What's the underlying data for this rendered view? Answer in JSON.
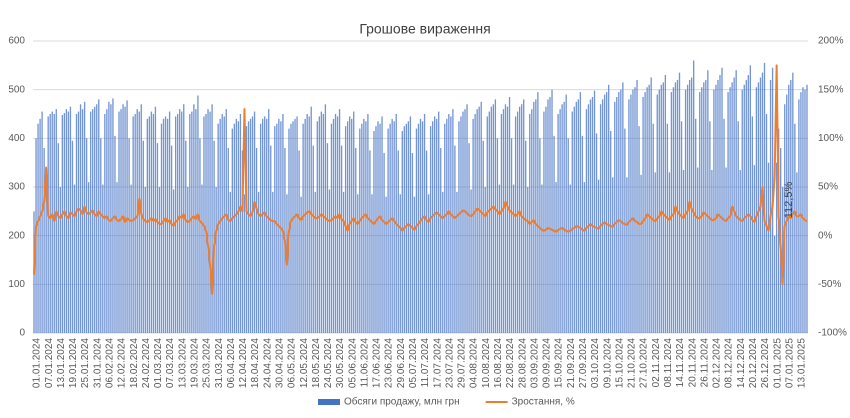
{
  "chart_data": {
    "type": "bar-line",
    "title": "Грошове вираження",
    "annotation": "112,5%",
    "categories": [
      "01.01.2024",
      null,
      null,
      null,
      null,
      null,
      "07.01.2024",
      null,
      null,
      null,
      null,
      null,
      "13.01.2024",
      null,
      null,
      null,
      null,
      null,
      "19.01.2024",
      null,
      null,
      null,
      null,
      null,
      "25.01.2024",
      null,
      null,
      null,
      null,
      null,
      "31.01.2024",
      null,
      null,
      null,
      null,
      null,
      "06.02.2024",
      null,
      null,
      null,
      null,
      null,
      "12.02.2024",
      null,
      null,
      null,
      null,
      null,
      "18.02.2024",
      null,
      null,
      null,
      null,
      null,
      "24.02.2024",
      null,
      null,
      null,
      null,
      null,
      "01.03.2024",
      null,
      null,
      null,
      null,
      null,
      "07.03.2024",
      null,
      null,
      null,
      null,
      null,
      "13.03.2024",
      null,
      null,
      null,
      null,
      null,
      "19.03.2024",
      null,
      null,
      null,
      null,
      null,
      "25.03.2024",
      null,
      null,
      null,
      null,
      null,
      "31.03.2024",
      null,
      null,
      null,
      null,
      null,
      "06.04.2024",
      null,
      null,
      null,
      null,
      null,
      "12.04.2024",
      null,
      null,
      null,
      null,
      null,
      "18.04.2024",
      null,
      null,
      null,
      null,
      null,
      "24.04.2024",
      null,
      null,
      null,
      null,
      null,
      "30.04.2024",
      null,
      null,
      null,
      null,
      null,
      "06.05.2024",
      null,
      null,
      null,
      null,
      null,
      "12.05.2024",
      null,
      null,
      null,
      null,
      null,
      "18.05.2024",
      null,
      null,
      null,
      null,
      null,
      "24.05.2024",
      null,
      null,
      null,
      null,
      null,
      "30.05.2024",
      null,
      null,
      null,
      null,
      null,
      "05.06.2024",
      null,
      null,
      null,
      null,
      null,
      "11.06.2024",
      null,
      null,
      null,
      null,
      null,
      "17.06.2024",
      null,
      null,
      null,
      null,
      null,
      "23.06.2024",
      null,
      null,
      null,
      null,
      null,
      "29.06.2024",
      null,
      null,
      null,
      null,
      null,
      "05.07.2024",
      null,
      null,
      null,
      null,
      null,
      "11.07.2024",
      null,
      null,
      null,
      null,
      null,
      "17.07.2024",
      null,
      null,
      null,
      null,
      null,
      "23.07.2024",
      null,
      null,
      null,
      null,
      null,
      "29.07.2024",
      null,
      null,
      null,
      null,
      null,
      "04.08.2024",
      null,
      null,
      null,
      null,
      null,
      "10.08.2024",
      null,
      null,
      null,
      null,
      null,
      "16.08.2024",
      null,
      null,
      null,
      null,
      null,
      "22.08.2024",
      null,
      null,
      null,
      null,
      null,
      "28.08.2024",
      null,
      null,
      null,
      null,
      null,
      "03.09.2024",
      null,
      null,
      null,
      null,
      null,
      "09.09.2024",
      null,
      null,
      null,
      null,
      null,
      "15.09.2024",
      null,
      null,
      null,
      null,
      null,
      "21.09.2024",
      null,
      null,
      null,
      null,
      null,
      "27.09.2024",
      null,
      null,
      null,
      null,
      null,
      "03.10.2024",
      null,
      null,
      null,
      null,
      null,
      "09.10.2024",
      null,
      null,
      null,
      null,
      null,
      "15.10.2024",
      null,
      null,
      null,
      null,
      null,
      "21.10.2024",
      null,
      null,
      null,
      null,
      null,
      "27.10.2024",
      null,
      null,
      null,
      null,
      null,
      "02.11.2024",
      null,
      null,
      null,
      null,
      null,
      "08.11.2024",
      null,
      null,
      null,
      null,
      null,
      "14.11.2024",
      null,
      null,
      null,
      null,
      null,
      "20.11.2024",
      null,
      null,
      null,
      null,
      null,
      "26.11.2024",
      null,
      null,
      null,
      null,
      null,
      "02.12.2024",
      null,
      null,
      null,
      null,
      null,
      "08.12.2024",
      null,
      null,
      null,
      null,
      null,
      "14.12.2024",
      null,
      null,
      null,
      null,
      null,
      "20.12.2024",
      null,
      null,
      null,
      null,
      null,
      "26.12.2024",
      null,
      null,
      null,
      null,
      null,
      "01.01.2025",
      null,
      null,
      null,
      null,
      null,
      "07.01.2025",
      null,
      null,
      null,
      null,
      null,
      "13.01.2025",
      null,
      null,
      null,
      null
    ],
    "series": [
      {
        "name": "Обсяги продажу, млн грн",
        "type": "bar",
        "color": "#4472c4",
        "values": [
          250,
          400,
          430,
          440,
          455,
          380,
          300,
          445,
          450,
          455,
          450,
          460,
          390,
          300,
          448,
          452,
          460,
          455,
          465,
          395,
          305,
          450,
          455,
          470,
          460,
          475,
          400,
          310,
          455,
          460,
          465,
          470,
          480,
          400,
          305,
          450,
          460,
          475,
          470,
          482,
          405,
          310,
          455,
          460,
          470,
          465,
          478,
          400,
          305,
          445,
          450,
          460,
          455,
          470,
          395,
          300,
          440,
          445,
          455,
          450,
          465,
          390,
          300,
          430,
          440,
          445,
          440,
          455,
          385,
          295,
          445,
          450,
          460,
          455,
          470,
          395,
          300,
          450,
          455,
          470,
          460,
          488,
          400,
          305,
          445,
          450,
          460,
          455,
          470,
          395,
          300,
          430,
          440,
          450,
          445,
          460,
          380,
          290,
          420,
          430,
          440,
          435,
          450,
          375,
          285,
          425,
          435,
          440,
          445,
          455,
          380,
          290,
          430,
          440,
          445,
          440,
          460,
          385,
          290,
          425,
          430,
          440,
          435,
          450,
          380,
          285,
          420,
          430,
          435,
          440,
          445,
          375,
          280,
          430,
          440,
          450,
          445,
          465,
          385,
          290,
          435,
          445,
          455,
          450,
          470,
          390,
          295,
          430,
          440,
          450,
          445,
          460,
          385,
          290,
          425,
          435,
          445,
          440,
          455,
          380,
          285,
          420,
          430,
          440,
          435,
          450,
          375,
          285,
          415,
          425,
          435,
          430,
          445,
          370,
          280,
          420,
          430,
          440,
          435,
          450,
          375,
          285,
          415,
          425,
          430,
          435,
          445,
          370,
          280,
          420,
          430,
          440,
          435,
          450,
          375,
          285,
          425,
          435,
          445,
          440,
          455,
          380,
          290,
          430,
          440,
          450,
          445,
          460,
          385,
          290,
          435,
          445,
          455,
          460,
          470,
          390,
          295,
          440,
          450,
          460,
          465,
          475,
          395,
          300,
          445,
          455,
          465,
          470,
          480,
          400,
          305,
          450,
          460,
          470,
          465,
          485,
          400,
          305,
          445,
          455,
          465,
          470,
          480,
          395,
          300,
          450,
          460,
          475,
          480,
          495,
          400,
          305,
          455,
          465,
          480,
          485,
          500,
          405,
          310,
          450,
          460,
          470,
          475,
          490,
          400,
          305,
          455,
          465,
          475,
          480,
          495,
          405,
          310,
          460,
          470,
          480,
          485,
          498,
          410,
          315,
          470,
          480,
          490,
          495,
          510,
          415,
          320,
          475,
          485,
          495,
          500,
          515,
          420,
          320,
          480,
          490,
          500,
          505,
          520,
          425,
          325,
          485,
          495,
          505,
          510,
          525,
          430,
          330,
          490,
          500,
          510,
          515,
          530,
          430,
          330,
          495,
          505,
          515,
          520,
          535,
          435,
          335,
          500,
          510,
          520,
          525,
          560,
          440,
          340,
          495,
          505,
          515,
          520,
          540,
          435,
          335,
          500,
          510,
          520,
          530,
          545,
          440,
          340,
          495,
          505,
          515,
          525,
          540,
          435,
          335,
          500,
          510,
          520,
          530,
          550,
          445,
          345,
          505,
          515,
          525,
          535,
          555,
          450,
          350,
          520,
          545,
          200,
          350,
          420,
          380,
          300,
          470,
          490,
          510,
          520,
          535,
          430,
          330,
          480,
          495,
          505,
          500,
          510
        ]
      },
      {
        "name": "Зростання, %",
        "type": "line",
        "axis": "y2",
        "color": "#ed7d31",
        "values": [
          -40,
          10,
          15,
          20,
          25,
          35,
          70,
          20,
          18,
          22,
          15,
          25,
          20,
          18,
          22,
          25,
          20,
          18,
          24,
          22,
          20,
          25,
          28,
          26,
          22,
          30,
          24,
          22,
          24,
          26,
          22,
          20,
          25,
          22,
          20,
          18,
          20,
          16,
          15,
          18,
          20,
          16,
          15,
          17,
          20,
          14,
          18,
          16,
          15,
          16,
          18,
          20,
          38,
          22,
          17,
          15,
          14,
          16,
          18,
          15,
          17,
          14,
          12,
          12,
          15,
          18,
          14,
          16,
          12,
          10,
          14,
          16,
          20,
          18,
          22,
          16,
          14,
          15,
          18,
          20,
          17,
          22,
          15,
          13,
          10,
          5,
          -10,
          -30,
          -60,
          -10,
          5,
          12,
          15,
          18,
          20,
          22,
          16,
          15,
          18,
          20,
          22,
          25,
          30,
          25,
          130,
          25,
          22,
          20,
          24,
          35,
          28,
          22,
          20,
          22,
          24,
          20,
          18,
          16,
          15,
          15,
          12,
          10,
          8,
          5,
          -5,
          -30,
          5,
          15,
          18,
          20,
          22,
          18,
          16,
          20,
          22,
          24,
          25,
          22,
          20,
          18,
          18,
          20,
          22,
          20,
          18,
          16,
          15,
          16,
          18,
          20,
          18,
          22,
          17,
          15,
          10,
          5,
          12,
          15,
          18,
          14,
          12,
          15,
          18,
          20,
          22,
          18,
          16,
          14,
          12,
          15,
          18,
          20,
          16,
          14,
          12,
          14,
          16,
          18,
          15,
          12,
          10,
          8,
          5,
          8,
          10,
          12,
          10,
          8,
          6,
          10,
          12,
          15,
          18,
          20,
          16,
          14,
          18,
          20,
          22,
          24,
          22,
          20,
          18,
          20,
          22,
          25,
          22,
          20,
          18,
          20,
          22,
          24,
          26,
          25,
          23,
          21,
          20,
          22,
          25,
          28,
          26,
          24,
          22,
          20,
          24,
          26,
          28,
          30,
          27,
          25,
          22,
          25,
          28,
          35,
          30,
          26,
          24,
          22,
          20,
          22,
          25,
          20,
          18,
          16,
          15,
          12,
          14,
          16,
          12,
          10,
          8,
          6,
          5,
          6,
          8,
          7,
          6,
          5,
          4,
          6,
          7,
          8,
          6,
          5,
          4,
          5,
          7,
          8,
          10,
          9,
          8,
          6,
          5,
          8,
          10,
          12,
          10,
          9,
          8,
          7,
          10,
          12,
          14,
          12,
          11,
          10,
          9,
          12,
          14,
          16,
          15,
          13,
          12,
          11,
          14,
          16,
          18,
          15,
          14,
          12,
          12,
          15,
          18,
          22,
          20,
          18,
          16,
          15,
          18,
          20,
          25,
          22,
          20,
          18,
          16,
          20,
          22,
          30,
          25,
          22,
          20,
          18,
          22,
          25,
          35,
          28,
          24,
          20,
          18,
          18,
          20,
          24,
          22,
          20,
          18,
          16,
          16,
          18,
          22,
          20,
          18,
          16,
          15,
          18,
          20,
          30,
          25,
          20,
          18,
          16,
          15,
          18,
          20,
          22,
          20,
          16,
          14,
          20,
          25,
          30,
          50,
          15,
          10,
          5,
          20,
          30,
          60,
          175,
          20,
          -10,
          -50,
          10,
          15,
          20,
          18,
          22,
          25,
          20,
          20,
          22,
          18,
          16,
          15
        ]
      }
    ],
    "ylim": [
      0,
      600
    ],
    "yticks": [
      0,
      100,
      200,
      300,
      400,
      500,
      600
    ],
    "y2lim": [
      -100,
      200
    ],
    "y2ticks": [
      {
        "value": -100,
        "label": "-100%"
      },
      {
        "value": -50,
        "label": "-50%"
      },
      {
        "value": 0,
        "label": "0%"
      },
      {
        "value": 50,
        "label": "50%"
      },
      {
        "value": 100,
        "label": "100%"
      },
      {
        "value": 150,
        "label": "150%"
      },
      {
        "value": 200,
        "label": "200%"
      }
    ],
    "grid": true,
    "legend": "bottom"
  }
}
